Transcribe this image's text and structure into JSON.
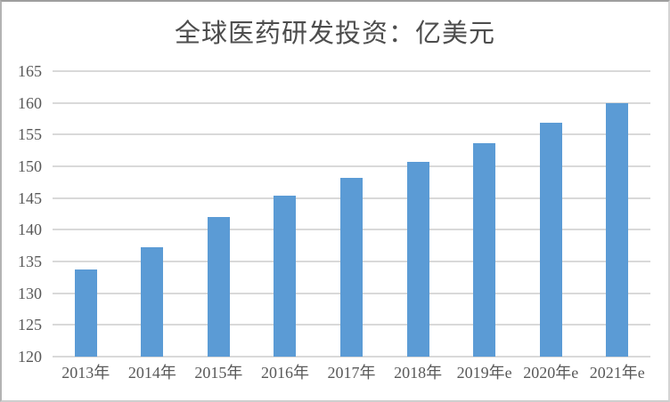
{
  "frame": {
    "background": "#ffffff",
    "border_color": "#b3b3b3"
  },
  "chart_data": {
    "type": "bar",
    "title": "全球医药研发投资：亿美元",
    "categories": [
      "2013年",
      "2014年",
      "2015年",
      "2016年",
      "2017年",
      "2018年",
      "2019年e",
      "2020年e",
      "2021年e"
    ],
    "values": [
      133.7,
      137.3,
      142.0,
      145.4,
      148.2,
      150.7,
      153.7,
      156.9,
      160.0
    ],
    "xlabel": "",
    "ylabel": "",
    "ylim": [
      120,
      165
    ],
    "yticks": [
      165,
      160,
      155,
      150,
      145,
      140,
      135,
      130,
      125,
      120
    ],
    "grid": true,
    "legend": "none",
    "bar_color": "#5B9BD5",
    "gridline_color": "#d9d9d9",
    "axis_line_color": "#d9d9d9",
    "label_color": "#595959",
    "title_color": "#4d4d4d"
  }
}
